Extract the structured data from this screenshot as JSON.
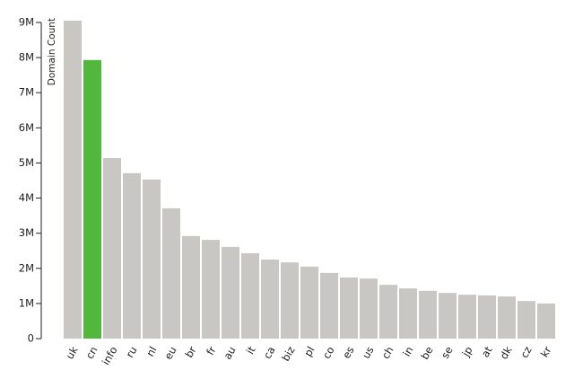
{
  "chart_data": {
    "type": "bar",
    "y_label": "Domain Count",
    "categories": [
      "uk",
      "cn",
      "info",
      "ru",
      "nl",
      "eu",
      "br",
      "fr",
      "au",
      "it",
      "ca",
      "biz",
      "pl",
      "co",
      "es",
      "us",
      "ch",
      "in",
      "be",
      "se",
      "jp",
      "at",
      "dk",
      "cz",
      "kr"
    ],
    "values": [
      9050000,
      7930000,
      5140000,
      4710000,
      4530000,
      3710000,
      2920000,
      2810000,
      2610000,
      2430000,
      2250000,
      2170000,
      2050000,
      1870000,
      1740000,
      1710000,
      1530000,
      1430000,
      1360000,
      1300000,
      1250000,
      1230000,
      1200000,
      1070000,
      1000000
    ],
    "colors": [
      "#c8c7c3",
      "#52b73d",
      "#c8c7c3",
      "#c8c7c3",
      "#c8c7c3",
      "#c8c7c3",
      "#c8c7c3",
      "#c8c7c3",
      "#c8c7c3",
      "#c8c7c3",
      "#c8c7c3",
      "#c8c7c3",
      "#c8c7c3",
      "#c8c7c3",
      "#c8c7c3",
      "#c8c7c3",
      "#c8c7c3",
      "#c8c7c3",
      "#c8c7c3",
      "#c8c7c3",
      "#c8c7c3",
      "#c8c7c3",
      "#c8c7c3",
      "#c8c7c3",
      "#c8c7c3"
    ],
    "ylim": [
      0,
      9000000
    ],
    "yticks": [
      0,
      {
        "value": 1000000,
        "label": "1M"
      },
      {
        "value": 2000000,
        "label": "2M"
      },
      {
        "value": 3000000,
        "label": "3M"
      },
      {
        "value": 4000000,
        "label": "4M"
      },
      {
        "value": 5000000,
        "label": "5M"
      },
      {
        "value": 6000000,
        "label": "6M"
      },
      {
        "value": 7000000,
        "label": "7M"
      },
      {
        "value": 8000000,
        "label": "8M"
      },
      {
        "value": 9000000,
        "label": "9M"
      }
    ],
    "grid": false
  }
}
